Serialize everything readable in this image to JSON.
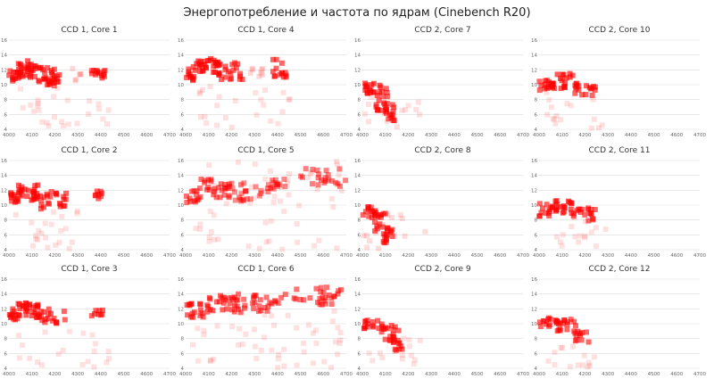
{
  "chart_data": {
    "title": "Энергопотребление и частота по ядрам (Cinebench R20)",
    "type": "scatter",
    "grid": true,
    "x_ticks": [
      "4000",
      "4100",
      "4200",
      "4300",
      "4400",
      "4500",
      "4600",
      "4700"
    ],
    "xlim": [
      4000,
      4700
    ],
    "y_ticks": [
      "4",
      "6",
      "8",
      "10",
      "12",
      "14",
      "16"
    ],
    "ylim": [
      4,
      16
    ],
    "marker_color": "#ff0000",
    "panels": [
      {
        "title": "CCD 1, Core 1",
        "clusters": [
          {
            "x0": 4000,
            "x1": 4040,
            "y0": 10.5,
            "y1": 12.0,
            "alpha": 0.6,
            "count": 12,
            "seed": 1
          },
          {
            "x0": 4040,
            "x1": 4120,
            "y0": 11.0,
            "y1": 13.2,
            "alpha": 0.65,
            "count": 26,
            "seed": 2
          },
          {
            "x0": 4110,
            "x1": 4230,
            "y0": 10.0,
            "y1": 12.4,
            "alpha": 0.6,
            "count": 24,
            "seed": 3
          },
          {
            "x0": 4150,
            "x1": 4230,
            "y0": 9.8,
            "y1": 11.2,
            "alpha": 0.55,
            "count": 12,
            "seed": 4
          },
          {
            "x0": 4270,
            "x1": 4320,
            "y0": 10.5,
            "y1": 12.2,
            "alpha": 0.15,
            "count": 6,
            "seed": 5
          },
          {
            "x0": 4360,
            "x1": 4420,
            "y0": 10.8,
            "y1": 12.2,
            "alpha": 0.6,
            "count": 14,
            "seed": 6
          },
          {
            "x0": 4030,
            "x1": 4440,
            "y0": 4.0,
            "y1": 9.8,
            "alpha": 0.12,
            "count": 26,
            "seed": 7
          }
        ]
      },
      {
        "title": "CCD 1, Core 4",
        "clusters": [
          {
            "x0": 4000,
            "x1": 4040,
            "y0": 10.5,
            "y1": 12.5,
            "alpha": 0.6,
            "count": 12,
            "seed": 11
          },
          {
            "x0": 4040,
            "x1": 4150,
            "y0": 11.5,
            "y1": 13.5,
            "alpha": 0.65,
            "count": 28,
            "seed": 12
          },
          {
            "x0": 4140,
            "x1": 4250,
            "y0": 10.5,
            "y1": 13.0,
            "alpha": 0.6,
            "count": 22,
            "seed": 13
          },
          {
            "x0": 4260,
            "x1": 4340,
            "y0": 11.0,
            "y1": 12.5,
            "alpha": 0.15,
            "count": 8,
            "seed": 14
          },
          {
            "x0": 4380,
            "x1": 4440,
            "y0": 11.0,
            "y1": 13.5,
            "alpha": 0.6,
            "count": 14,
            "seed": 15
          },
          {
            "x0": 4030,
            "x1": 4460,
            "y0": 4.0,
            "y1": 10.0,
            "alpha": 0.12,
            "count": 24,
            "seed": 16
          }
        ]
      },
      {
        "title": "CCD 2, Core 7",
        "clusters": [
          {
            "x0": 4000,
            "x1": 4080,
            "y0": 8.5,
            "y1": 10.2,
            "alpha": 0.65,
            "count": 18,
            "seed": 21
          },
          {
            "x0": 4060,
            "x1": 4120,
            "y0": 6.5,
            "y1": 9.5,
            "alpha": 0.6,
            "count": 16,
            "seed": 22
          },
          {
            "x0": 4100,
            "x1": 4140,
            "y0": 4.0,
            "y1": 7.5,
            "alpha": 0.6,
            "count": 14,
            "seed": 23
          },
          {
            "x0": 4000,
            "x1": 4260,
            "y0": 4.0,
            "y1": 9.0,
            "alpha": 0.12,
            "count": 14,
            "seed": 24
          }
        ]
      },
      {
        "title": "CCD 2, Core 10",
        "clusters": [
          {
            "x0": 4000,
            "x1": 4060,
            "y0": 9.2,
            "y1": 10.8,
            "alpha": 0.6,
            "count": 12,
            "seed": 31
          },
          {
            "x0": 4050,
            "x1": 4150,
            "y0": 9.5,
            "y1": 11.5,
            "alpha": 0.65,
            "count": 22,
            "seed": 32
          },
          {
            "x0": 4140,
            "x1": 4250,
            "y0": 8.5,
            "y1": 10.2,
            "alpha": 0.6,
            "count": 18,
            "seed": 33
          },
          {
            "x0": 4020,
            "x1": 4280,
            "y0": 4.0,
            "y1": 9.0,
            "alpha": 0.12,
            "count": 16,
            "seed": 34
          }
        ]
      },
      {
        "title": "CCD 1, Core 2",
        "clusters": [
          {
            "x0": 4000,
            "x1": 4040,
            "y0": 10.3,
            "y1": 11.8,
            "alpha": 0.6,
            "count": 12,
            "seed": 41
          },
          {
            "x0": 4040,
            "x1": 4130,
            "y0": 10.5,
            "y1": 12.7,
            "alpha": 0.65,
            "count": 24,
            "seed": 42
          },
          {
            "x0": 4130,
            "x1": 4250,
            "y0": 9.5,
            "y1": 12.0,
            "alpha": 0.6,
            "count": 24,
            "seed": 43
          },
          {
            "x0": 4370,
            "x1": 4410,
            "y0": 10.8,
            "y1": 12.0,
            "alpha": 0.6,
            "count": 8,
            "seed": 44
          },
          {
            "x0": 4030,
            "x1": 4300,
            "y0": 4.0,
            "y1": 9.5,
            "alpha": 0.12,
            "count": 22,
            "seed": 45
          }
        ]
      },
      {
        "title": "CCD 1, Core 5",
        "clusters": [
          {
            "x0": 4000,
            "x1": 4060,
            "y0": 10.3,
            "y1": 12.0,
            "alpha": 0.55,
            "count": 12,
            "seed": 51
          },
          {
            "x0": 4060,
            "x1": 4200,
            "y0": 11.0,
            "y1": 13.5,
            "alpha": 0.55,
            "count": 26,
            "seed": 52
          },
          {
            "x0": 4180,
            "x1": 4330,
            "y0": 10.5,
            "y1": 13.0,
            "alpha": 0.45,
            "count": 24,
            "seed": 53
          },
          {
            "x0": 4340,
            "x1": 4450,
            "y0": 11.5,
            "y1": 13.5,
            "alpha": 0.45,
            "count": 16,
            "seed": 54
          },
          {
            "x0": 4500,
            "x1": 4700,
            "y0": 12.5,
            "y1": 15.0,
            "alpha": 0.5,
            "count": 22,
            "seed": 55
          },
          {
            "x0": 4020,
            "x1": 4680,
            "y0": 4.0,
            "y1": 16.0,
            "alpha": 0.12,
            "count": 60,
            "seed": 56
          }
        ]
      },
      {
        "title": "CCD 2, Core 8",
        "clusters": [
          {
            "x0": 4000,
            "x1": 4060,
            "y0": 8.2,
            "y1": 9.8,
            "alpha": 0.6,
            "count": 14,
            "seed": 61
          },
          {
            "x0": 4050,
            "x1": 4110,
            "y0": 6.5,
            "y1": 9.0,
            "alpha": 0.6,
            "count": 16,
            "seed": 62
          },
          {
            "x0": 4090,
            "x1": 4140,
            "y0": 4.0,
            "y1": 7.0,
            "alpha": 0.6,
            "count": 14,
            "seed": 63
          },
          {
            "x0": 4000,
            "x1": 4280,
            "y0": 4.0,
            "y1": 9.0,
            "alpha": 0.14,
            "count": 16,
            "seed": 64
          }
        ]
      },
      {
        "title": "CCD 2, Core 11",
        "clusters": [
          {
            "x0": 4000,
            "x1": 4060,
            "y0": 8.5,
            "y1": 10.2,
            "alpha": 0.6,
            "count": 12,
            "seed": 71
          },
          {
            "x0": 4050,
            "x1": 4150,
            "y0": 8.8,
            "y1": 10.6,
            "alpha": 0.65,
            "count": 20,
            "seed": 72
          },
          {
            "x0": 4140,
            "x1": 4250,
            "y0": 7.8,
            "y1": 9.6,
            "alpha": 0.6,
            "count": 18,
            "seed": 73
          },
          {
            "x0": 4020,
            "x1": 4300,
            "y0": 4.0,
            "y1": 8.5,
            "alpha": 0.12,
            "count": 16,
            "seed": 74
          }
        ]
      },
      {
        "title": "CCD 1, Core 3",
        "clusters": [
          {
            "x0": 4000,
            "x1": 4040,
            "y0": 10.5,
            "y1": 12.0,
            "alpha": 0.6,
            "count": 12,
            "seed": 81
          },
          {
            "x0": 4040,
            "x1": 4130,
            "y0": 11.0,
            "y1": 12.8,
            "alpha": 0.65,
            "count": 24,
            "seed": 82
          },
          {
            "x0": 4120,
            "x1": 4250,
            "y0": 10.0,
            "y1": 12.0,
            "alpha": 0.6,
            "count": 22,
            "seed": 83
          },
          {
            "x0": 4360,
            "x1": 4410,
            "y0": 10.8,
            "y1": 12.0,
            "alpha": 0.6,
            "count": 8,
            "seed": 84
          },
          {
            "x0": 4040,
            "x1": 4440,
            "y0": 4.0,
            "y1": 9.5,
            "alpha": 0.12,
            "count": 20,
            "seed": 85
          }
        ]
      },
      {
        "title": "CCD 1, Core 6",
        "clusters": [
          {
            "x0": 4000,
            "x1": 4080,
            "y0": 10.8,
            "y1": 12.8,
            "alpha": 0.6,
            "count": 16,
            "seed": 91
          },
          {
            "x0": 4080,
            "x1": 4230,
            "y0": 11.5,
            "y1": 13.8,
            "alpha": 0.6,
            "count": 26,
            "seed": 92
          },
          {
            "x0": 4220,
            "x1": 4400,
            "y0": 11.5,
            "y1": 14.0,
            "alpha": 0.55,
            "count": 26,
            "seed": 93
          },
          {
            "x0": 4400,
            "x1": 4680,
            "y0": 12.5,
            "y1": 15.0,
            "alpha": 0.55,
            "count": 30,
            "seed": 94
          },
          {
            "x0": 4030,
            "x1": 4680,
            "y0": 4.0,
            "y1": 12.0,
            "alpha": 0.12,
            "count": 50,
            "seed": 95
          }
        ]
      },
      {
        "title": "CCD 2, Core 9",
        "clusters": [
          {
            "x0": 4000,
            "x1": 4100,
            "y0": 9.2,
            "y1": 10.5,
            "alpha": 0.6,
            "count": 16,
            "seed": 101
          },
          {
            "x0": 4080,
            "x1": 4160,
            "y0": 7.5,
            "y1": 9.8,
            "alpha": 0.6,
            "count": 16,
            "seed": 102
          },
          {
            "x0": 4120,
            "x1": 4180,
            "y0": 6.0,
            "y1": 8.0,
            "alpha": 0.6,
            "count": 10,
            "seed": 103
          },
          {
            "x0": 4020,
            "x1": 4260,
            "y0": 4.0,
            "y1": 8.5,
            "alpha": 0.12,
            "count": 14,
            "seed": 104
          }
        ]
      },
      {
        "title": "CCD 2, Core 12",
        "clusters": [
          {
            "x0": 4000,
            "x1": 4080,
            "y0": 9.5,
            "y1": 10.8,
            "alpha": 0.6,
            "count": 14,
            "seed": 111
          },
          {
            "x0": 4070,
            "x1": 4170,
            "y0": 9.0,
            "y1": 10.6,
            "alpha": 0.6,
            "count": 16,
            "seed": 112
          },
          {
            "x0": 4150,
            "x1": 4220,
            "y0": 7.5,
            "y1": 9.5,
            "alpha": 0.6,
            "count": 12,
            "seed": 113
          },
          {
            "x0": 4040,
            "x1": 4260,
            "y0": 4.0,
            "y1": 8.0,
            "alpha": 0.12,
            "count": 14,
            "seed": 114
          }
        ]
      }
    ]
  }
}
